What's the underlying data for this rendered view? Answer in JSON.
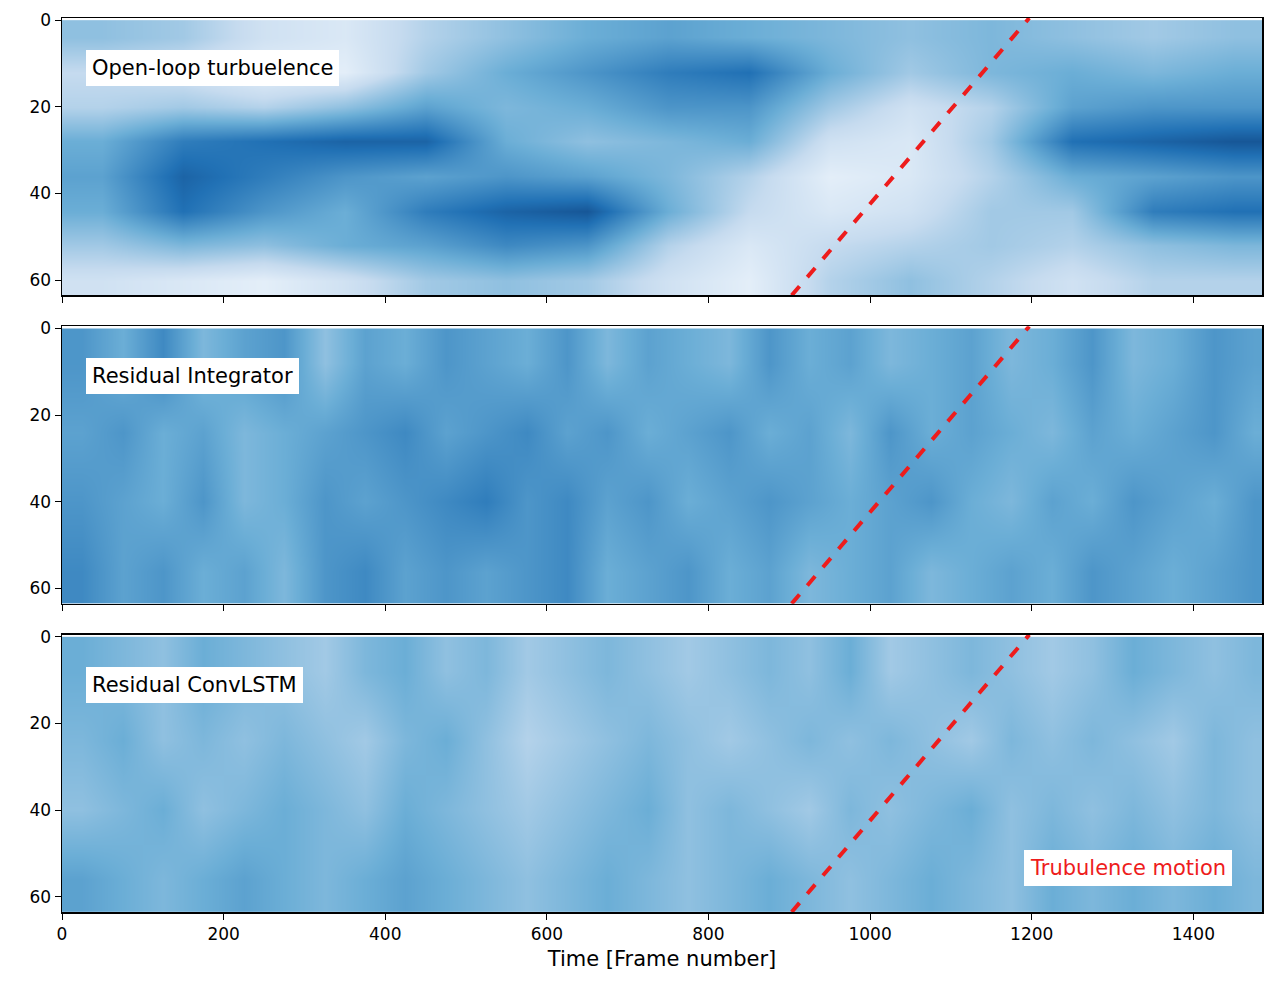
{
  "chart_data": [
    {
      "type": "heatmap",
      "title": "Open-loop turbuelence",
      "x": [
        50,
        150,
        250,
        350,
        450,
        550,
        650,
        750,
        850,
        950,
        1050,
        1150,
        1250,
        1350,
        1450
      ],
      "y": [
        4,
        12,
        20,
        28,
        36,
        44,
        52,
        60
      ],
      "cells": [
        [
          0.4,
          0.35,
          0.2,
          0.15,
          0.3,
          0.4,
          0.5,
          0.55,
          0.5,
          0.45,
          0.4,
          0.45,
          0.4,
          0.35,
          0.4
        ],
        [
          0.25,
          0.2,
          0.1,
          0.1,
          0.35,
          0.5,
          0.6,
          0.7,
          0.75,
          0.5,
          0.35,
          0.45,
          0.5,
          0.45,
          0.5
        ],
        [
          0.3,
          0.35,
          0.3,
          0.4,
          0.55,
          0.45,
          0.5,
          0.6,
          0.6,
          0.35,
          0.2,
          0.3,
          0.55,
          0.6,
          0.6
        ],
        [
          0.5,
          0.7,
          0.75,
          0.8,
          0.8,
          0.5,
          0.4,
          0.45,
          0.5,
          0.2,
          0.15,
          0.35,
          0.75,
          0.8,
          0.85
        ],
        [
          0.55,
          0.8,
          0.7,
          0.6,
          0.55,
          0.6,
          0.55,
          0.45,
          0.3,
          0.1,
          0.15,
          0.3,
          0.5,
          0.55,
          0.6
        ],
        [
          0.5,
          0.75,
          0.6,
          0.5,
          0.7,
          0.8,
          0.85,
          0.5,
          0.25,
          0.15,
          0.2,
          0.35,
          0.35,
          0.7,
          0.75
        ],
        [
          0.35,
          0.45,
          0.4,
          0.5,
          0.55,
          0.65,
          0.6,
          0.3,
          0.15,
          0.25,
          0.3,
          0.35,
          0.3,
          0.4,
          0.45
        ],
        [
          0.2,
          0.15,
          0.1,
          0.2,
          0.35,
          0.4,
          0.35,
          0.2,
          0.1,
          0.3,
          0.4,
          0.3,
          0.2,
          0.3,
          0.3
        ]
      ],
      "zlim": [
        0,
        1
      ],
      "xlim": [
        0,
        1485
      ],
      "xticks": [
        0,
        200,
        400,
        600,
        800,
        1000,
        1200,
        1400
      ],
      "ylim": [
        63.5,
        -0.5
      ],
      "yticks": [
        0,
        20,
        40,
        60
      ],
      "tick_labels": "y",
      "series": [
        {
          "type": "line",
          "color": "#ee1c1c",
          "line_style": "dashed",
          "x": [
            903,
            1197
          ],
          "values": [
            63.5,
            -0.5
          ]
        }
      ]
    },
    {
      "type": "heatmap",
      "title": "Residual Integrator",
      "x": [
        25,
        75,
        125,
        175,
        225,
        275,
        325,
        375,
        425,
        475,
        525,
        575,
        625,
        675,
        725,
        775,
        825,
        875,
        925,
        975,
        1025,
        1075,
        1125,
        1175,
        1225,
        1275,
        1325,
        1375,
        1425,
        1475
      ],
      "y": [
        8,
        24,
        40,
        56
      ],
      "cells": [
        [
          0.6,
          0.5,
          0.65,
          0.45,
          0.55,
          0.6,
          0.4,
          0.55,
          0.5,
          0.6,
          0.55,
          0.5,
          0.6,
          0.45,
          0.55,
          0.5,
          0.45,
          0.6,
          0.5,
          0.55,
          0.45,
          0.5,
          0.55,
          0.45,
          0.5,
          0.6,
          0.45,
          0.5,
          0.6,
          0.55
        ],
        [
          0.55,
          0.6,
          0.5,
          0.55,
          0.45,
          0.5,
          0.55,
          0.6,
          0.65,
          0.55,
          0.6,
          0.65,
          0.55,
          0.6,
          0.5,
          0.55,
          0.6,
          0.5,
          0.55,
          0.45,
          0.6,
          0.5,
          0.55,
          0.5,
          0.45,
          0.55,
          0.5,
          0.55,
          0.6,
          0.5
        ],
        [
          0.6,
          0.55,
          0.5,
          0.6,
          0.45,
          0.5,
          0.6,
          0.55,
          0.6,
          0.65,
          0.7,
          0.6,
          0.65,
          0.55,
          0.6,
          0.5,
          0.55,
          0.6,
          0.55,
          0.5,
          0.55,
          0.6,
          0.5,
          0.45,
          0.55,
          0.5,
          0.6,
          0.55,
          0.5,
          0.6
        ],
        [
          0.65,
          0.55,
          0.6,
          0.5,
          0.55,
          0.45,
          0.6,
          0.65,
          0.55,
          0.6,
          0.55,
          0.6,
          0.65,
          0.5,
          0.55,
          0.6,
          0.5,
          0.55,
          0.45,
          0.5,
          0.55,
          0.45,
          0.5,
          0.55,
          0.5,
          0.6,
          0.55,
          0.5,
          0.55,
          0.6
        ]
      ],
      "zlim": [
        0,
        1
      ],
      "xlim": [
        0,
        1485
      ],
      "xticks": [
        0,
        200,
        400,
        600,
        800,
        1000,
        1200,
        1400
      ],
      "ylim": [
        63.5,
        -0.5
      ],
      "yticks": [
        0,
        20,
        40,
        60
      ],
      "tick_labels": "y",
      "series": [
        {
          "type": "line",
          "color": "#ee1c1c",
          "line_style": "dashed",
          "x": [
            903,
            1197
          ],
          "values": [
            63.5,
            -0.5
          ]
        }
      ]
    },
    {
      "type": "heatmap",
      "title": "Residual ConvLSTM",
      "x": [
        25,
        75,
        125,
        175,
        225,
        275,
        325,
        375,
        425,
        475,
        525,
        575,
        625,
        675,
        725,
        775,
        825,
        875,
        925,
        975,
        1025,
        1075,
        1125,
        1175,
        1225,
        1275,
        1325,
        1375,
        1425,
        1475
      ],
      "y": [
        8,
        24,
        40,
        56
      ],
      "cells": [
        [
          0.5,
          0.45,
          0.4,
          0.5,
          0.45,
          0.4,
          0.35,
          0.45,
          0.5,
          0.4,
          0.45,
          0.35,
          0.4,
          0.45,
          0.4,
          0.35,
          0.4,
          0.45,
          0.4,
          0.5,
          0.35,
          0.4,
          0.45,
          0.4,
          0.35,
          0.4,
          0.5,
          0.45,
          0.4,
          0.45
        ],
        [
          0.45,
          0.5,
          0.4,
          0.45,
          0.4,
          0.45,
          0.4,
          0.35,
          0.45,
          0.5,
          0.4,
          0.3,
          0.35,
          0.4,
          0.45,
          0.4,
          0.35,
          0.4,
          0.45,
          0.4,
          0.45,
          0.4,
          0.35,
          0.45,
          0.4,
          0.45,
          0.4,
          0.35,
          0.45,
          0.4
        ],
        [
          0.4,
          0.45,
          0.5,
          0.4,
          0.45,
          0.5,
          0.45,
          0.4,
          0.5,
          0.45,
          0.4,
          0.35,
          0.4,
          0.45,
          0.5,
          0.4,
          0.45,
          0.4,
          0.35,
          0.45,
          0.4,
          0.45,
          0.5,
          0.4,
          0.45,
          0.4,
          0.45,
          0.4,
          0.45,
          0.4
        ],
        [
          0.55,
          0.5,
          0.45,
          0.5,
          0.55,
          0.5,
          0.45,
          0.5,
          0.55,
          0.5,
          0.45,
          0.4,
          0.45,
          0.5,
          0.45,
          0.4,
          0.45,
          0.5,
          0.45,
          0.4,
          0.45,
          0.5,
          0.45,
          0.4,
          0.5,
          0.45,
          0.5,
          0.45,
          0.5,
          0.45
        ]
      ],
      "zlim": [
        0,
        1
      ],
      "xlim": [
        0,
        1485
      ],
      "xticks": [
        0,
        200,
        400,
        600,
        800,
        1000,
        1200,
        1400
      ],
      "ylim": [
        63.5,
        -0.5
      ],
      "yticks": [
        0,
        20,
        40,
        60
      ],
      "xlabel": "Time [Frame number]",
      "annotations": [
        {
          "text": "Trubulence motion",
          "color": "#ee1c1c"
        }
      ],
      "series": [
        {
          "type": "line",
          "color": "#ee1c1c",
          "line_style": "dashed",
          "x": [
            903,
            1197
          ],
          "values": [
            63.5,
            -0.5
          ]
        }
      ]
    }
  ]
}
